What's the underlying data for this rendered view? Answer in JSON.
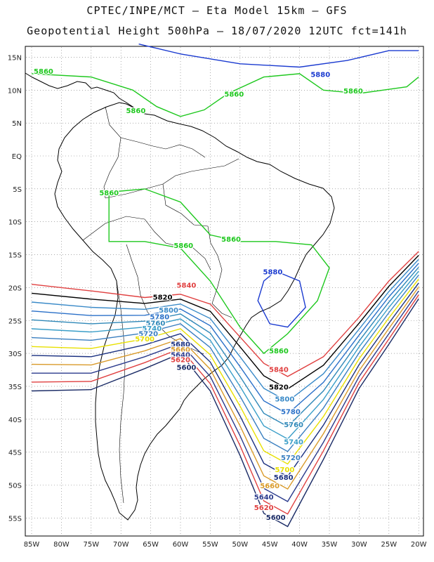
{
  "header": {
    "line1": "CPTEC/INPE/MCT –  Eta Model 15km – GFS",
    "line2": "Geopotential Height 500hPa – 18/07/2020 12UTC fct=141h"
  },
  "map": {
    "lon_labels": [
      "85W",
      "80W",
      "75W",
      "70W",
      "65W",
      "60W",
      "55W",
      "50W",
      "45W",
      "40W",
      "35W",
      "30W",
      "25W",
      "20W"
    ],
    "lat_labels": [
      "15N",
      "10N",
      "5N",
      "EQ",
      "5S",
      "10S",
      "15S",
      "20S",
      "25S",
      "30S",
      "35S",
      "40S",
      "45S",
      "50S",
      "55S"
    ],
    "contour_colors": {
      "5600": "#1a2b66",
      "5620": "#e04040",
      "5640": "#2a3a8c",
      "5660": "#d99a2a",
      "5680": "#1a3080",
      "5700": "#e8e000",
      "5720": "#3a7fc0",
      "5740": "#3a9ec8",
      "5760": "#2f88b8",
      "5780": "#2a70c8",
      "5800": "#3a8ac8",
      "5820": "#000000",
      "5840": "#e04040",
      "5860": "#1ec81e",
      "5880": "#1a3ad0"
    },
    "contour_labels": [
      {
        "value": "5880",
        "lon": -36.5,
        "lat": 12.0
      },
      {
        "value": "5860",
        "lon": -83.0,
        "lat": 12.5
      },
      {
        "value": "5860",
        "lon": -51.0,
        "lat": 9.0
      },
      {
        "value": "5860",
        "lon": -67.5,
        "lat": 6.5
      },
      {
        "value": "5860",
        "lon": -31.0,
        "lat": 9.5
      },
      {
        "value": "5860",
        "lon": -72.0,
        "lat": -6.0
      },
      {
        "value": "5860",
        "lon": -51.5,
        "lat": -13.0
      },
      {
        "value": "5860",
        "lon": -59.5,
        "lat": -14.0
      },
      {
        "value": "5880",
        "lon": -44.5,
        "lat": -18.0
      },
      {
        "value": "5860",
        "lon": -43.5,
        "lat": -30.0
      },
      {
        "value": "5840",
        "lon": -59.0,
        "lat": -20.0
      },
      {
        "value": "5820",
        "lon": -63.0,
        "lat": -21.8
      },
      {
        "value": "5800",
        "lon": -62.0,
        "lat": -23.8
      },
      {
        "value": "5780",
        "lon": -63.5,
        "lat": -24.8
      },
      {
        "value": "5760",
        "lon": -64.2,
        "lat": -25.8
      },
      {
        "value": "5740",
        "lon": -64.8,
        "lat": -26.6
      },
      {
        "value": "5720",
        "lon": -65.4,
        "lat": -27.4
      },
      {
        "value": "5700",
        "lon": -66.0,
        "lat": -28.2
      },
      {
        "value": "5680",
        "lon": -60.0,
        "lat": -29.0
      },
      {
        "value": "5660",
        "lon": -60.0,
        "lat": -29.8
      },
      {
        "value": "5640",
        "lon": -60.0,
        "lat": -30.6
      },
      {
        "value": "5620",
        "lon": -60.0,
        "lat": -31.3
      },
      {
        "value": "5600",
        "lon": -59.0,
        "lat": -32.5
      },
      {
        "value": "5840",
        "lon": -43.5,
        "lat": -32.8
      },
      {
        "value": "5820",
        "lon": -43.5,
        "lat": -35.5
      },
      {
        "value": "5800",
        "lon": -42.5,
        "lat": -37.3
      },
      {
        "value": "5780",
        "lon": -41.5,
        "lat": -39.2
      },
      {
        "value": "5760",
        "lon": -41.0,
        "lat": -41.2
      },
      {
        "value": "5740",
        "lon": -41.0,
        "lat": -43.8
      },
      {
        "value": "5720",
        "lon": -41.5,
        "lat": -46.2
      },
      {
        "value": "5700",
        "lon": -42.5,
        "lat": -48.0
      },
      {
        "value": "5680",
        "lon": -42.7,
        "lat": -49.2
      },
      {
        "value": "5660",
        "lon": -45.0,
        "lat": -50.5
      },
      {
        "value": "5640",
        "lon": -46.0,
        "lat": -52.2
      },
      {
        "value": "5620",
        "lon": -46.0,
        "lat": -53.8
      },
      {
        "value": "5600",
        "lon": -44.0,
        "lat": -55.3
      }
    ]
  }
}
